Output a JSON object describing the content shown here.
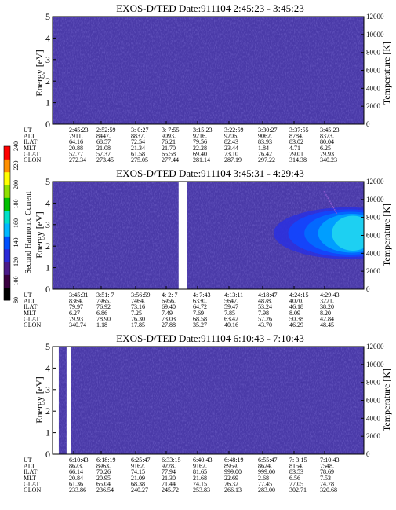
{
  "chart_data": [
    {
      "type": "heatmap",
      "title": "EXOS-D/TED   Date:911104  2:45:23 - 3:45:23",
      "ylabel": "Energy [eV]",
      "ylim": [
        0,
        5
      ],
      "y_ticks": [
        "0",
        "1",
        "2",
        "3",
        "4",
        "5"
      ],
      "y2label": "Temperature [K]",
      "y2lim": [
        0,
        12000
      ],
      "y2_ticks": [
        "0",
        "2000",
        "4000",
        "6000",
        "8000",
        "10000",
        "12000"
      ],
      "orbit_rows": [
        {
          "label": "UT",
          "values": [
            "2:45:23",
            "2:52:59",
            "3: 0:27",
            "3: 7:55",
            "3:15:23",
            "3:22:59",
            "3:30:27",
            "3:37:55",
            "3:45:23"
          ]
        },
        {
          "label": "ALT",
          "values": [
            "7911.",
            "8447.",
            "8837.",
            "9093.",
            "9216.",
            "9206.",
            "9062.",
            "8784.",
            "8373."
          ]
        },
        {
          "label": "ILAT",
          "values": [
            "64.16",
            "68.57",
            "72.54",
            "76.21",
            "79.56",
            "82.43",
            "83.93",
            "83.02",
            "80.04"
          ]
        },
        {
          "label": "MLT",
          "values": [
            "20.88",
            "21.08",
            "21.34",
            "21.70",
            "22.28",
            "23.44",
            "1.84",
            "4.71",
            "6.25"
          ]
        },
        {
          "label": "GLAT",
          "values": [
            "52.77",
            "57.37",
            "61.58",
            "65.58",
            "69.40",
            "73.10",
            "76.42",
            "79.01",
            "79.93"
          ]
        },
        {
          "label": "GLON",
          "values": [
            "272.34",
            "273.45",
            "275.05",
            "277.44",
            "281.14",
            "287.19",
            "297.22",
            "314.38",
            "340.23"
          ]
        }
      ],
      "data_gaps": [],
      "hot_region": null
    },
    {
      "type": "heatmap",
      "title": "EXOS-D/TED   Date:911104  3:45:31 - 4:29:43",
      "ylabel": "Energy [eV]",
      "ylim": [
        0,
        5
      ],
      "y_ticks": [
        "0",
        "1",
        "2",
        "3",
        "4",
        "5"
      ],
      "y2label": "Temperature [K]",
      "y2lim": [
        0,
        12000
      ],
      "y2_ticks": [
        "0",
        "2000",
        "4000",
        "6000",
        "8000",
        "10000",
        "12000"
      ],
      "orbit_rows": [
        {
          "label": "UT",
          "values": [
            "3:45:31",
            "3:51: 7",
            "3:56:59",
            "4: 2: 7",
            "4: 7:43",
            "4:13:11",
            "4:18:47",
            "4:24:15",
            "4:29:43"
          ]
        },
        {
          "label": "ALT",
          "values": [
            "8364.",
            "7965.",
            "7464.",
            "6956.",
            "6330.",
            "5647.",
            "4878.",
            "4070.",
            "3221."
          ]
        },
        {
          "label": "ILAT",
          "values": [
            "79.97",
            "76.92",
            "73.16",
            "69.40",
            "64.72",
            "59.47",
            "53.24",
            "46.18",
            "38.20"
          ]
        },
        {
          "label": "MLT",
          "values": [
            "6.27",
            "6.86",
            "7.25",
            "7.49",
            "7.69",
            "7.85",
            "7.98",
            "8.09",
            "8.20"
          ]
        },
        {
          "label": "GLAT",
          "values": [
            "79.93",
            "78.90",
            "76.30",
            "73.03",
            "68.58",
            "63.42",
            "57.26",
            "50.38",
            "42.84"
          ]
        },
        {
          "label": "GLON",
          "values": [
            "340.74",
            "1.18",
            "17.85",
            "27.88",
            "35.27",
            "40.16",
            "43.70",
            "46.29",
            "48.45"
          ]
        }
      ],
      "data_gaps": [
        [
          0.405,
          0.432
        ]
      ],
      "hot_region": {
        "x_start": 0.76,
        "x_peak": 0.95,
        "y_center": 2.6,
        "y_halfwidth": 1.2
      }
    },
    {
      "type": "heatmap",
      "title": "EXOS-D/TED   Date:911104  6:10:43 - 7:10:43",
      "ylabel": "Energy [eV]",
      "ylim": [
        0,
        5
      ],
      "y_ticks": [
        "0",
        "1",
        "2",
        "3",
        "4",
        "5"
      ],
      "y2label": "Temperature [K]",
      "y2lim": [
        0,
        12000
      ],
      "y2_ticks": [
        "0",
        "2000",
        "4000",
        "6000",
        "8000",
        "10000",
        "12000"
      ],
      "orbit_rows": [
        {
          "label": "UT",
          "values": [
            "6:10:43",
            "6:18:19",
            "6:25:47",
            "6:33:15",
            "6:40:43",
            "6:48:19",
            "6:55:47",
            "7: 3:15",
            "7:10:43"
          ]
        },
        {
          "label": "ALT",
          "values": [
            "8623.",
            "8963.",
            "9162.",
            "9228.",
            "9162.",
            "8959.",
            "8624.",
            "8154.",
            "7548."
          ]
        },
        {
          "label": "ILAT",
          "values": [
            "66.14",
            "70.26",
            "74.15",
            "77.94",
            "81.65",
            "999.00",
            "999.00",
            "83.53",
            "78.69"
          ]
        },
        {
          "label": "MLT",
          "values": [
            "20.84",
            "20.95",
            "21.09",
            "21.30",
            "21.68",
            "22.69",
            "2.68",
            "6.56",
            "7.53"
          ]
        },
        {
          "label": "GLAT",
          "values": [
            "61.36",
            "65.04",
            "68.38",
            "71.44",
            "74.15",
            "76.32",
            "77.45",
            "77.05",
            "74.78"
          ]
        },
        {
          "label": "GLON",
          "values": [
            "233.86",
            "236.54",
            "240.27",
            "245.72",
            "253.83",
            "266.13",
            "283.00",
            "302.71",
            "320.68"
          ]
        }
      ],
      "data_gaps": [
        [
          0.0,
          0.02
        ],
        [
          0.045,
          0.06
        ]
      ],
      "hot_region": null
    }
  ],
  "colorbar": {
    "label": "Second Harmonic Current",
    "ticks": [
      "80",
      "100",
      "120",
      "140",
      "160",
      "180",
      "200",
      "220",
      "240"
    ],
    "colors": [
      "#000000",
      "#3a0040",
      "#4b1a8a",
      "#2a2ad8",
      "#0050ff",
      "#00b8ff",
      "#00e0c8",
      "#00c000",
      "#90e000",
      "#ffff00",
      "#ff9000",
      "#ff0000"
    ]
  },
  "colors": {
    "background_field": "#4a3aa8",
    "gap": "#ffffff"
  }
}
